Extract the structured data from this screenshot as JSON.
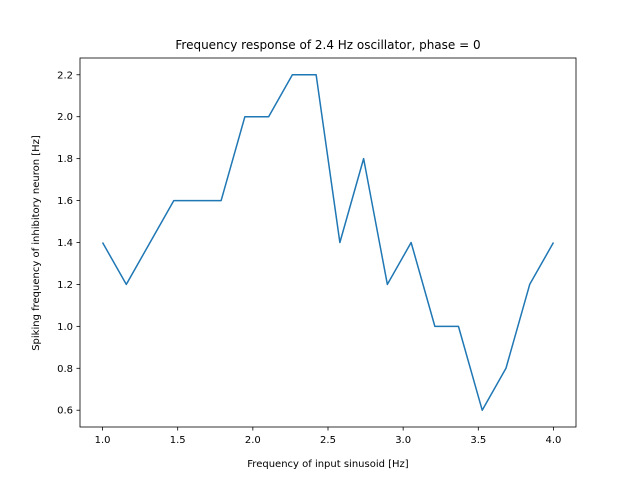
{
  "chart_data": {
    "type": "line",
    "title": "Frequency response of 2.4 Hz oscillator, phase = 0",
    "xlabel": "Frequency of input sinusoid [Hz]",
    "ylabel": "Spiking frequency of inhibitory neuron [Hz]",
    "xlim": [
      0.85,
      4.15
    ],
    "ylim": [
      0.52,
      2.28
    ],
    "x_ticks": [
      1.0,
      1.5,
      2.0,
      2.5,
      3.0,
      3.5,
      4.0
    ],
    "x_tick_labels": [
      "1.0",
      "1.5",
      "2.0",
      "2.5",
      "3.0",
      "3.5",
      "4.0"
    ],
    "y_ticks": [
      0.6,
      0.8,
      1.0,
      1.2,
      1.4,
      1.6,
      1.8,
      2.0,
      2.2
    ],
    "y_tick_labels": [
      "0.6",
      "0.8",
      "1.0",
      "1.2",
      "1.4",
      "1.6",
      "1.8",
      "2.0",
      "2.2"
    ],
    "grid": false,
    "line_color": "#1f77b4",
    "series": [
      {
        "x": [
          1.0,
          1.158,
          1.316,
          1.474,
          1.632,
          1.789,
          1.947,
          2.105,
          2.263,
          2.421,
          2.579,
          2.737,
          2.895,
          3.053,
          3.211,
          3.368,
          3.526,
          3.684,
          3.842,
          4.0
        ],
        "y": [
          1.4,
          1.2,
          1.4,
          1.6,
          1.6,
          1.6,
          2.0,
          2.0,
          2.2,
          2.2,
          1.4,
          1.8,
          1.2,
          1.4,
          1.0,
          1.0,
          0.6,
          0.8,
          1.2,
          1.4
        ]
      }
    ]
  }
}
